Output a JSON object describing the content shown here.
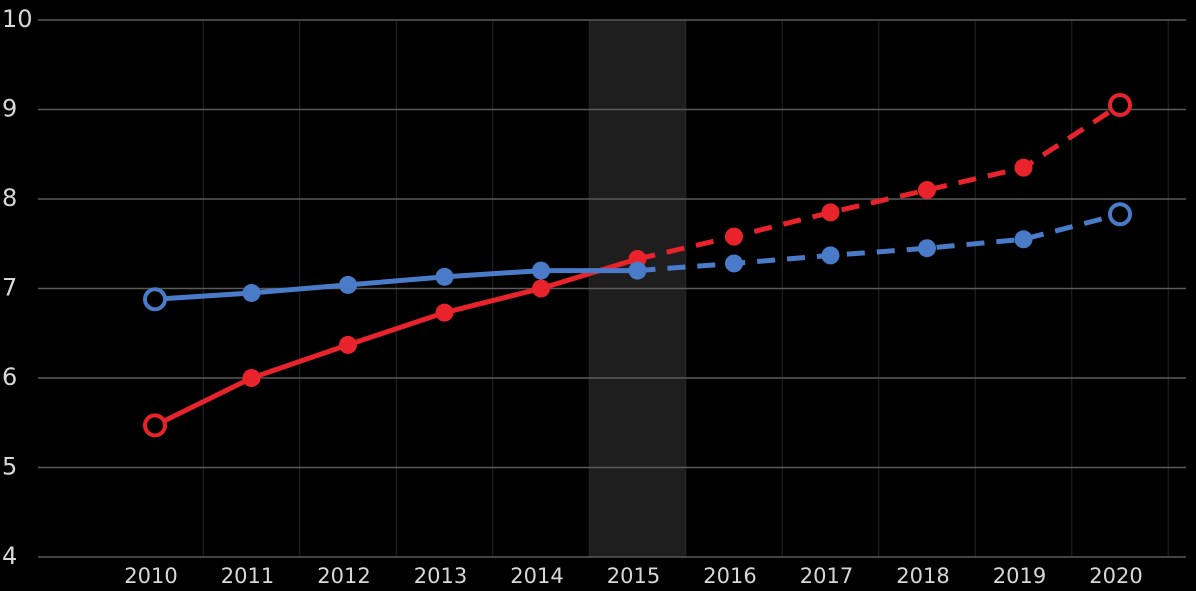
{
  "chart_data": {
    "type": "line",
    "categories": [
      "2010",
      "2011",
      "2012",
      "2013",
      "2014",
      "2015",
      "2016",
      "2017",
      "2018",
      "2019",
      "2020"
    ],
    "series": [
      {
        "color": "#e8232b",
        "values": [
          5.47,
          6.0,
          6.37,
          6.73,
          7.0,
          7.33,
          7.58,
          7.85,
          8.1,
          8.35,
          9.05
        ]
      },
      {
        "color": "#4a7bc8",
        "values": [
          6.88,
          6.95,
          7.04,
          7.13,
          7.2,
          7.2,
          7.28,
          7.37,
          7.45,
          7.55,
          7.83
        ]
      }
    ],
    "forecast_from": "2015",
    "highlight": "2015",
    "ylim": [
      4,
      10
    ],
    "yticks": [
      4,
      5,
      6,
      7,
      8,
      9,
      10
    ],
    "grid": true
  }
}
